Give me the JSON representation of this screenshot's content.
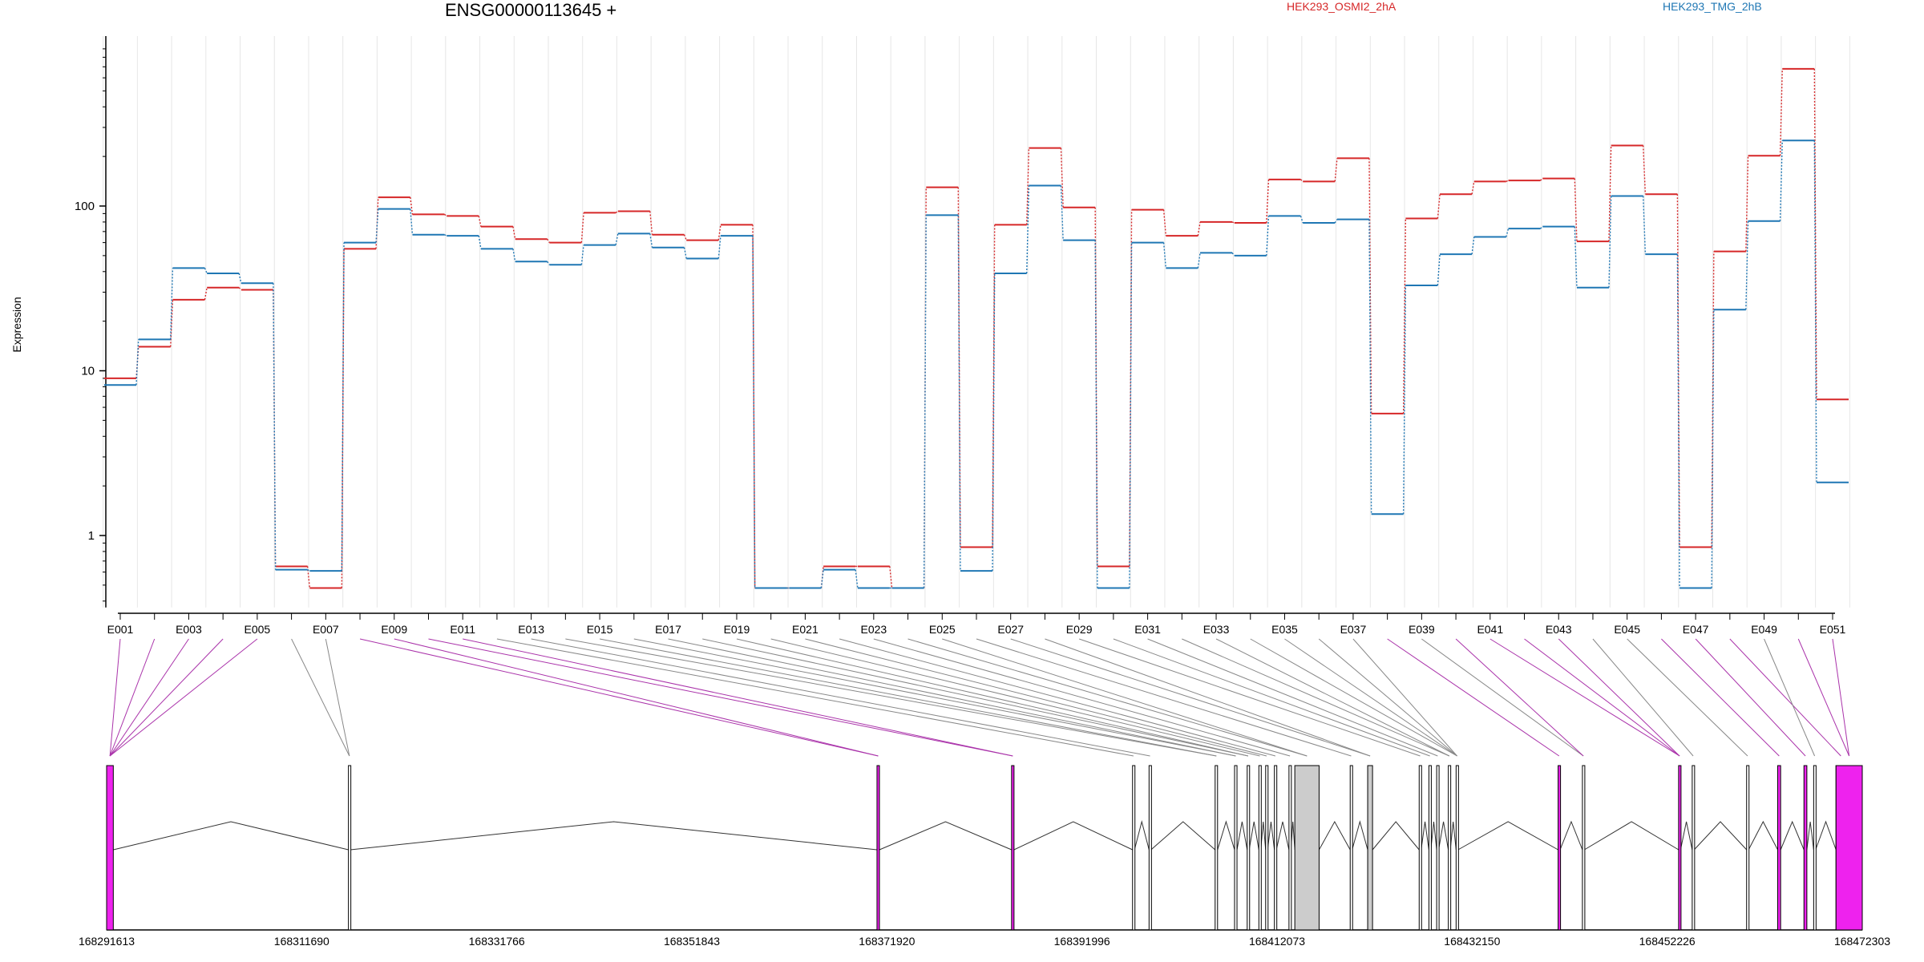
{
  "chart_data": {
    "type": "line",
    "title": "ENSG00000113645 +",
    "ylabel": "Expression",
    "yscale": "log",
    "ylim": [
      0.4,
      900
    ],
    "yticks": [
      1,
      10,
      100
    ],
    "ytick_labels": [
      "1",
      "10",
      "100"
    ],
    "categories": [
      "E001",
      "E002",
      "E003",
      "E004",
      "E005",
      "E006",
      "E007",
      "E008",
      "E009",
      "E010",
      "E011",
      "E012",
      "E013",
      "E014",
      "E015",
      "E016",
      "E017",
      "E018",
      "E019",
      "E020",
      "E021",
      "E022",
      "E023",
      "E024",
      "E025",
      "E026",
      "E027",
      "E028",
      "E029",
      "E030",
      "E031",
      "E032",
      "E033",
      "E034",
      "E035",
      "E036",
      "E037",
      "E038",
      "E039",
      "E040",
      "E041",
      "E042",
      "E043",
      "E044",
      "E045",
      "E046",
      "E047",
      "E048",
      "E049",
      "E050",
      "E051"
    ],
    "colors": {
      "HEK293_OSMI2_2hA": "#d62728",
      "HEK293_TMG_2hB": "#1f77b4",
      "exon_highlight": "#ee22ee",
      "exon_grey": "#cccccc"
    },
    "series": [
      {
        "name": "HEK293_OSMI2_2hA",
        "values": [
          9,
          14,
          27,
          32,
          31,
          0.65,
          0.48,
          55,
          113,
          89,
          87,
          75,
          63,
          60,
          91,
          93,
          67,
          62,
          77,
          0.48,
          0.48,
          0.65,
          0.65,
          0.48,
          130,
          0.85,
          77,
          225,
          98,
          0.65,
          95,
          66,
          80,
          79,
          145,
          141,
          195,
          5.5,
          84,
          118,
          141,
          143,
          147,
          61,
          233,
          118,
          0.85,
          53,
          202,
          680,
          6.7
        ]
      },
      {
        "name": "HEK293_TMG_2hB",
        "values": [
          8.2,
          15.5,
          42,
          39,
          34,
          0.62,
          0.61,
          60,
          96,
          67,
          66,
          55,
          46,
          44,
          58,
          68,
          56,
          48,
          66,
          0.48,
          0.48,
          0.62,
          0.48,
          0.48,
          88,
          0.61,
          39,
          133,
          62,
          0.48,
          60,
          42,
          52,
          50,
          87,
          79,
          83,
          1.35,
          33,
          51,
          65,
          73,
          75,
          32,
          115,
          51,
          0.48,
          23.5,
          81,
          250,
          2.1
        ]
      }
    ],
    "genomic_axis": {
      "tick_labels": [
        "168291613",
        "168311690",
        "168331766",
        "168351843",
        "168371920",
        "168391996",
        "168412073",
        "168432150",
        "168452226",
        "168472303"
      ],
      "start": 168291613,
      "end": 168472303
    },
    "exons": [
      {
        "id": "E001",
        "start": 168291613,
        "end": 168292300,
        "highlight": true
      },
      {
        "id": "E002",
        "start": 168291613,
        "end": 168292300,
        "highlight": true
      },
      {
        "id": "E003",
        "start": 168291613,
        "end": 168292300,
        "highlight": true
      },
      {
        "id": "E004",
        "start": 168291613,
        "end": 168292300,
        "highlight": true
      },
      {
        "id": "E005",
        "start": 168291613,
        "end": 168292300,
        "highlight": true
      },
      {
        "id": "E006",
        "start": 168316500,
        "end": 168316700,
        "highlight": false
      },
      {
        "id": "E007",
        "start": 168316500,
        "end": 168316700,
        "highlight": false
      },
      {
        "id": "E008",
        "start": 168370900,
        "end": 168371150,
        "highlight": true
      },
      {
        "id": "E009",
        "start": 168370900,
        "end": 168371150,
        "highlight": true
      },
      {
        "id": "E010",
        "start": 168384750,
        "end": 168385000,
        "highlight": true
      },
      {
        "id": "E011",
        "start": 168384750,
        "end": 168385000,
        "highlight": true
      },
      {
        "id": "E012",
        "start": 168397200,
        "end": 168397400,
        "highlight": false
      },
      {
        "id": "E013",
        "start": 168398900,
        "end": 168399100,
        "highlight": false
      },
      {
        "id": "E014",
        "start": 168405700,
        "end": 168405950,
        "highlight": false
      },
      {
        "id": "E015",
        "start": 168405700,
        "end": 168405950,
        "highlight": false
      },
      {
        "id": "E016",
        "start": 168407700,
        "end": 168407950,
        "highlight": false
      },
      {
        "id": "E017",
        "start": 168407700,
        "end": 168407950,
        "highlight": false
      },
      {
        "id": "E018",
        "start": 168409000,
        "end": 168409200,
        "highlight": false
      },
      {
        "id": "E019",
        "start": 168409000,
        "end": 168409200,
        "highlight": false
      },
      {
        "id": "E020",
        "start": 168410200,
        "end": 168410400,
        "highlight": false
      },
      {
        "id": "E021",
        "start": 168410900,
        "end": 168411100,
        "highlight": false
      },
      {
        "id": "E022",
        "start": 168411800,
        "end": 168412000,
        "highlight": false
      },
      {
        "id": "E023",
        "start": 168413300,
        "end": 168413500,
        "highlight": false
      },
      {
        "id": "E024",
        "start": 168413900,
        "end": 168416400,
        "highlight": false,
        "grey": true
      },
      {
        "id": "E025",
        "start": 168413900,
        "end": 168416400,
        "highlight": false,
        "grey": true
      },
      {
        "id": "E026",
        "start": 168419600,
        "end": 168419800,
        "highlight": false
      },
      {
        "id": "E027",
        "start": 168421400,
        "end": 168421900,
        "highlight": false,
        "grey": true
      },
      {
        "id": "E028",
        "start": 168421400,
        "end": 168421900,
        "highlight": false,
        "grey": true
      },
      {
        "id": "E029",
        "start": 168426700,
        "end": 168426900,
        "highlight": false
      },
      {
        "id": "E030",
        "start": 168427700,
        "end": 168427900,
        "highlight": false
      },
      {
        "id": "E031",
        "start": 168428500,
        "end": 168428700,
        "highlight": false
      },
      {
        "id": "E032",
        "start": 168429700,
        "end": 168429900,
        "highlight": false
      },
      {
        "id": "E033",
        "start": 168429700,
        "end": 168429900,
        "highlight": false
      },
      {
        "id": "E034",
        "start": 168430500,
        "end": 168430700,
        "highlight": false
      },
      {
        "id": "E035",
        "start": 168430500,
        "end": 168430700,
        "highlight": false
      },
      {
        "id": "E036",
        "start": 168430500,
        "end": 168430700,
        "highlight": false
      },
      {
        "id": "E037",
        "start": 168430500,
        "end": 168430700,
        "highlight": false
      },
      {
        "id": "E038",
        "start": 168441000,
        "end": 168441200,
        "highlight": true
      },
      {
        "id": "E039",
        "start": 168443500,
        "end": 168443700,
        "highlight": false
      },
      {
        "id": "E040",
        "start": 168443500,
        "end": 168443700,
        "highlight": true
      },
      {
        "id": "E041",
        "start": 168453400,
        "end": 168453600,
        "highlight": true
      },
      {
        "id": "E042",
        "start": 168453400,
        "end": 168453600,
        "highlight": true
      },
      {
        "id": "E043",
        "start": 168453400,
        "end": 168453600,
        "highlight": true
      },
      {
        "id": "E044",
        "start": 168454800,
        "end": 168455000,
        "highlight": false
      },
      {
        "id": "E045",
        "start": 168460400,
        "end": 168460600,
        "highlight": false
      },
      {
        "id": "E046",
        "start": 168463600,
        "end": 168463900,
        "highlight": true
      },
      {
        "id": "E047",
        "start": 168466300,
        "end": 168466600,
        "highlight": true
      },
      {
        "id": "E048",
        "start": 168469600,
        "end": 168470600,
        "highlight": true
      },
      {
        "id": "E049",
        "start": 168467300,
        "end": 168467500,
        "highlight": false
      },
      {
        "id": "E050",
        "start": 168469600,
        "end": 168472303,
        "highlight": true
      },
      {
        "id": "E051",
        "start": 168469600,
        "end": 168472303,
        "highlight": true
      }
    ]
  }
}
